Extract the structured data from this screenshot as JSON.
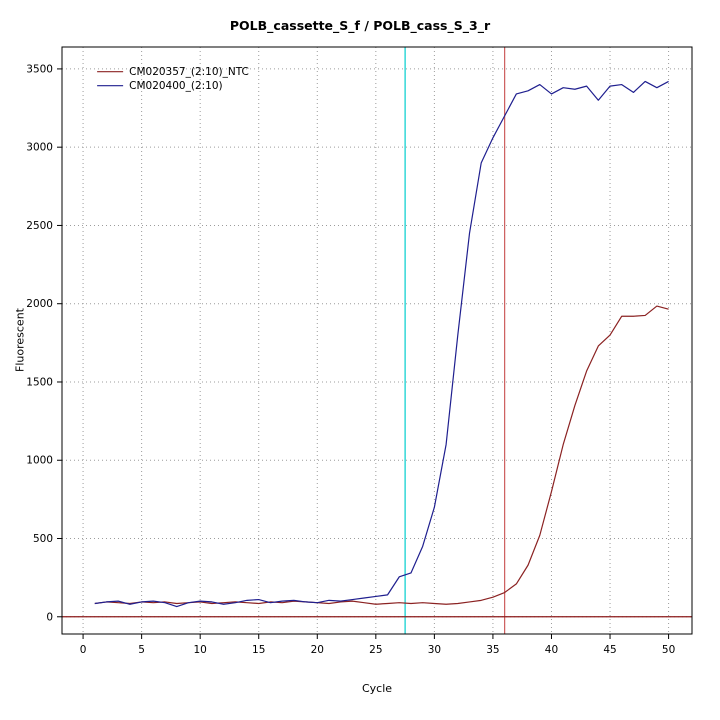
{
  "chart_data": {
    "type": "line",
    "title": "POLB_cassette_S_f / POLB_cass_S_3_r",
    "xlabel": "Cycle",
    "ylabel": "Fluorescent",
    "xlim": [
      -1.8,
      52
    ],
    "ylim": [
      -110,
      3640
    ],
    "xticks": [
      0,
      5,
      10,
      15,
      20,
      25,
      30,
      35,
      40,
      45,
      50
    ],
    "yticks": [
      0,
      500,
      1000,
      1500,
      2000,
      2500,
      3000,
      3500
    ],
    "grid": {
      "on": true,
      "color": "#9c9c9c",
      "dash": "1,3"
    },
    "x_start": 1,
    "x_step": 1,
    "series": [
      {
        "name": "CM020357_(2:10)_NTC",
        "color": "#8b2222",
        "values": [
          85,
          95,
          90,
          85,
          95,
          90,
          95,
          85,
          90,
          95,
          85,
          90,
          95,
          90,
          85,
          95,
          90,
          100,
          95,
          90,
          85,
          95,
          100,
          90,
          80,
          85,
          90,
          85,
          90,
          85,
          80,
          85,
          95,
          105,
          125,
          155,
          210,
          330,
          520,
          800,
          1100,
          1350,
          1570,
          1730,
          1800,
          1920,
          1920,
          1925,
          1985,
          1965
        ]
      },
      {
        "name": "CM020400_(2:10)",
        "color": "#1f1f8f",
        "values": [
          85,
          95,
          100,
          80,
          95,
          100,
          90,
          65,
          90,
          100,
          95,
          80,
          90,
          105,
          110,
          90,
          100,
          105,
          95,
          90,
          105,
          100,
          110,
          120,
          130,
          140,
          255,
          280,
          450,
          700,
          1100,
          1800,
          2450,
          2900,
          3060,
          3200,
          3340,
          3360,
          3400,
          3340,
          3380,
          3370,
          3390,
          3300,
          3390,
          3400,
          3350,
          3420,
          3380,
          3420
        ]
      }
    ],
    "vlines": [
      {
        "x": 27.5,
        "color": "#00cdcd"
      },
      {
        "x": 36,
        "color": "#cd5c5c"
      }
    ],
    "hlines": [
      {
        "y": 0,
        "color": "#8b1a1a"
      }
    ],
    "legend": {
      "position": "top-left"
    }
  }
}
